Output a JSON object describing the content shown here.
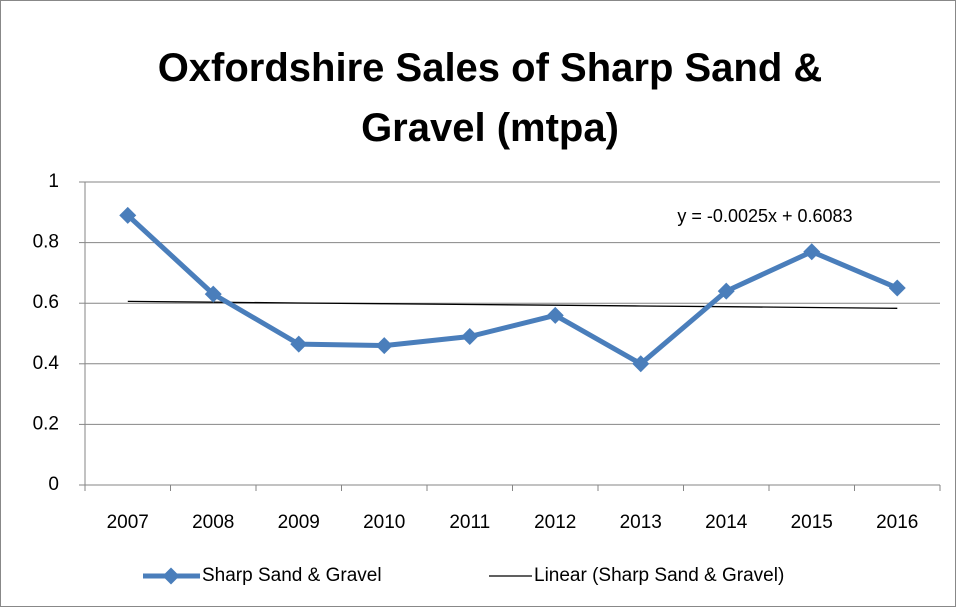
{
  "chart_data": {
    "type": "line",
    "title": "Oxfordshire Sales of Sharp Sand & Gravel (mtpa)",
    "categories": [
      "2007",
      "2008",
      "2009",
      "2010",
      "2011",
      "2012",
      "2013",
      "2014",
      "2015",
      "2016"
    ],
    "series": [
      {
        "name": "Sharp Sand & Gravel",
        "color": "#4a7ebb",
        "values": [
          0.89,
          0.63,
          0.465,
          0.46,
          0.49,
          0.56,
          0.4,
          0.64,
          0.77,
          0.65
        ]
      },
      {
        "name": "Linear (Sharp Sand & Gravel)",
        "color": "#000000",
        "values": [
          0.6058,
          0.6033,
          0.6008,
          0.5983,
          0.5958,
          0.5933,
          0.5908,
          0.5883,
          0.5858,
          0.5833
        ]
      }
    ],
    "annotation": "y = -0.0025x + 0.6083",
    "ylim": [
      0,
      1
    ],
    "yticks": [
      0,
      0.2,
      0.4,
      0.6,
      0.8,
      1
    ],
    "grid": true,
    "legend": "bottom"
  }
}
